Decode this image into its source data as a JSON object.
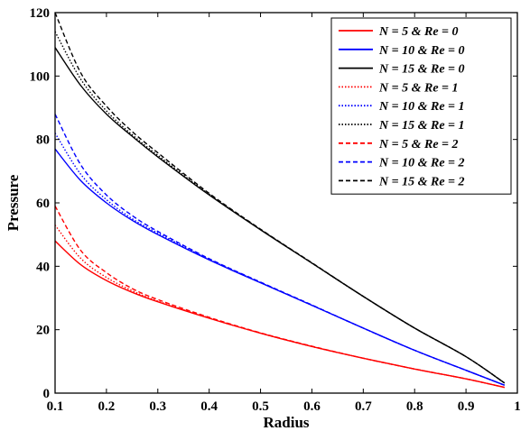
{
  "chart_data": {
    "type": "line",
    "xlabel": "Radius",
    "ylabel": "Pressure",
    "xlim": [
      0.1,
      1
    ],
    "ylim": [
      0,
      120
    ],
    "xticks": [
      "0.1",
      "0.2",
      "0.3",
      "0.4",
      "0.5",
      "0.6",
      "0.7",
      "0.8",
      "0.9",
      "1"
    ],
    "yticks": [
      "0",
      "20",
      "40",
      "60",
      "80",
      "100",
      "120"
    ],
    "grid": false,
    "legend_position": "top-right",
    "x": [
      0.1,
      0.15,
      0.2,
      0.25,
      0.3,
      0.4,
      0.5,
      0.6,
      0.7,
      0.8,
      0.9,
      0.975
    ],
    "series": [
      {
        "name": "N = 5   & Re = 0",
        "color": "#ff0000",
        "dash": "solid",
        "values": [
          48,
          40.5,
          35.5,
          31.8,
          28.8,
          23.6,
          18.9,
          14.7,
          11.0,
          7.6,
          4.5,
          1.8
        ]
      },
      {
        "name": "N = 10 & Re = 0",
        "color": "#0000ff",
        "dash": "solid",
        "values": [
          77,
          67,
          60,
          54.5,
          50,
          42,
          34.8,
          27.7,
          20.5,
          13.5,
          7.2,
          2.5
        ]
      },
      {
        "name": "N = 15 & Re = 0",
        "color": "#000000",
        "dash": "solid",
        "values": [
          109,
          97,
          88,
          81,
          74.5,
          62.5,
          51.5,
          41,
          30.5,
          20.5,
          11.5,
          3.2
        ]
      },
      {
        "name": "N = 5   & Re = 1",
        "color": "#ff0000",
        "dash": "dotted",
        "values": [
          53,
          42.5,
          36.5,
          32.3,
          29,
          23.7,
          18.9,
          14.7,
          11.0,
          7.6,
          4.5,
          1.8
        ]
      },
      {
        "name": "N = 10 & Re = 1",
        "color": "#0000ff",
        "dash": "dotted",
        "values": [
          82,
          69,
          61,
          55,
          50.5,
          42.2,
          34.9,
          27.7,
          20.5,
          13.5,
          7.2,
          2.5
        ]
      },
      {
        "name": "N = 15 & Re = 1",
        "color": "#000000",
        "dash": "dotted",
        "values": [
          114,
          99,
          89,
          81.5,
          75,
          62.7,
          51.6,
          41,
          30.5,
          20.5,
          11.5,
          3.2
        ]
      },
      {
        "name": "N = 5   & Re = 2",
        "color": "#ff0000",
        "dash": "dashed",
        "values": [
          59,
          45,
          38,
          33,
          29.5,
          23.9,
          19,
          14.8,
          11.0,
          7.6,
          4.5,
          1.8
        ]
      },
      {
        "name": "N = 10 & Re = 2",
        "color": "#0000ff",
        "dash": "dashed",
        "values": [
          88,
          72,
          62.5,
          56,
          51,
          42.4,
          35,
          27.8,
          20.5,
          13.5,
          7.2,
          2.5
        ]
      },
      {
        "name": "N = 15 & Re = 2",
        "color": "#000000",
        "dash": "dashed",
        "values": [
          120,
          101,
          90.5,
          82.5,
          75.8,
          63,
          51.7,
          41.1,
          30.5,
          20.5,
          11.5,
          3.2
        ]
      }
    ]
  }
}
